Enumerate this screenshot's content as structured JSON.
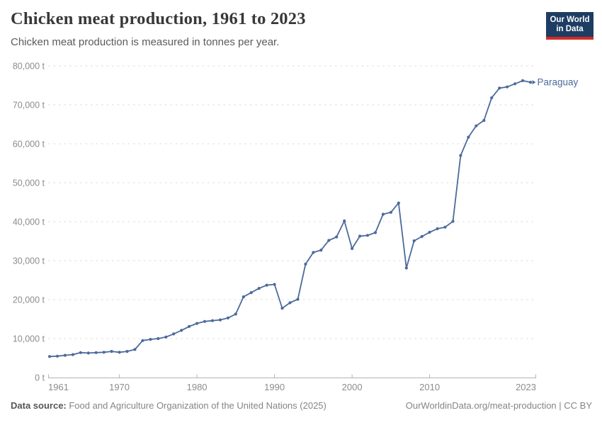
{
  "header": {
    "title": "Chicken meat production, 1961 to 2023",
    "subtitle": "Chicken meat production is measured in tonnes per year."
  },
  "logo": {
    "line1": "Our World",
    "line2": "in Data",
    "bg_color": "#1d3d63",
    "accent_color": "#d42b24"
  },
  "chart_data": {
    "type": "line",
    "title": "Chicken meat production, 1961 to 2023",
    "xlabel": "",
    "ylabel": "",
    "unit": "t",
    "ylim": [
      0,
      80000
    ],
    "grid": "horizontal-dashed",
    "legend": "end-of-line-label",
    "x": [
      1961,
      1962,
      1963,
      1964,
      1965,
      1966,
      1967,
      1968,
      1969,
      1970,
      1971,
      1972,
      1973,
      1974,
      1975,
      1976,
      1977,
      1978,
      1979,
      1980,
      1981,
      1982,
      1983,
      1984,
      1985,
      1986,
      1987,
      1988,
      1989,
      1990,
      1991,
      1992,
      1993,
      1994,
      1995,
      1996,
      1997,
      1998,
      1999,
      2000,
      2001,
      2002,
      2003,
      2004,
      2005,
      2006,
      2007,
      2008,
      2009,
      2010,
      2011,
      2012,
      2013,
      2014,
      2015,
      2016,
      2017,
      2018,
      2019,
      2020,
      2021,
      2022,
      2023
    ],
    "series": [
      {
        "name": "Paraguay",
        "color": "#4C6A9C",
        "values": [
          5400,
          5500,
          5700,
          5900,
          6400,
          6300,
          6400,
          6500,
          6700,
          6500,
          6700,
          7200,
          9500,
          9800,
          10000,
          10400,
          11200,
          12100,
          13100,
          13900,
          14400,
          14600,
          14800,
          15300,
          16300,
          20700,
          21800,
          22900,
          23700,
          23900,
          17800,
          19200,
          20100,
          29100,
          32100,
          32700,
          35200,
          36100,
          40200,
          33100,
          36300,
          36500,
          37200,
          41900,
          42400,
          44800,
          28100,
          35100,
          36200,
          37300,
          38200,
          38600,
          40100,
          57000,
          61700,
          64600,
          66000,
          71800,
          74300,
          74600,
          75400,
          76200,
          75800
        ]
      }
    ],
    "ytick_values": [
      0,
      10000,
      20000,
      30000,
      40000,
      50000,
      60000,
      70000,
      80000
    ],
    "ytick_labels": [
      "0 t",
      "10,000 t",
      "20,000 t",
      "30,000 t",
      "40,000 t",
      "50,000 t",
      "60,000 t",
      "70,000 t",
      "80,000 t"
    ],
    "xtick_values": [
      1961,
      1970,
      1980,
      1990,
      2000,
      2010,
      2023
    ],
    "xtick_labels": [
      "1961",
      "1970",
      "1980",
      "1990",
      "2000",
      "2010",
      "2023"
    ]
  },
  "footer": {
    "source_label": "Data source:",
    "source_text": " Food and Agriculture Organization of the United Nations (2025)",
    "attribution": "OurWorldinData.org/meat-production | CC BY"
  }
}
